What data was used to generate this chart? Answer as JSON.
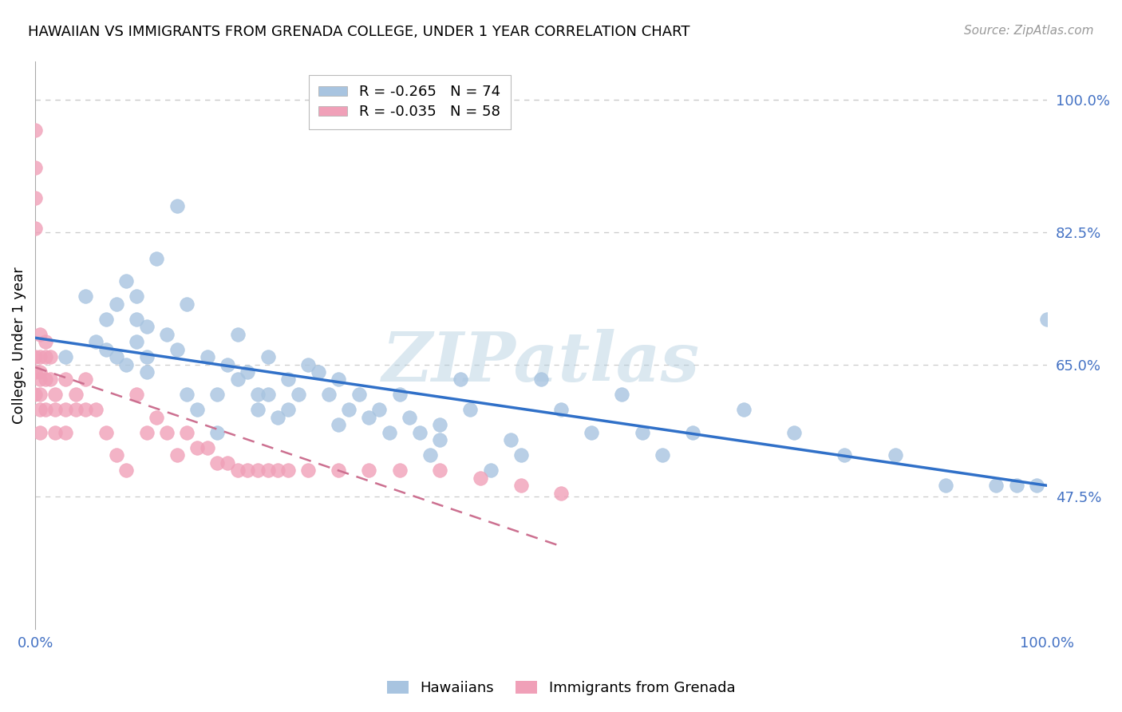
{
  "title": "HAWAIIAN VS IMMIGRANTS FROM GRENADA COLLEGE, UNDER 1 YEAR CORRELATION CHART",
  "source": "Source: ZipAtlas.com",
  "ylabel": "College, Under 1 year",
  "watermark": "ZIPatlas",
  "xlim": [
    0.0,
    1.0
  ],
  "ylim": [
    0.3,
    1.05
  ],
  "ytick_right_labels": [
    "100.0%",
    "82.5%",
    "65.0%",
    "47.5%"
  ],
  "ytick_right_values": [
    1.0,
    0.825,
    0.65,
    0.475
  ],
  "hawaiians_color": "#a8c4e0",
  "grenada_color": "#f0a0b8",
  "trend_hawaiians_color": "#3070c8",
  "trend_grenada_color": "#cc7090",
  "R_hawaiians": -0.265,
  "N_hawaiians": 74,
  "R_grenada": -0.035,
  "N_grenada": 58,
  "hawaiians_x": [
    0.03,
    0.05,
    0.06,
    0.07,
    0.07,
    0.08,
    0.08,
    0.09,
    0.09,
    0.1,
    0.1,
    0.1,
    0.11,
    0.11,
    0.11,
    0.12,
    0.13,
    0.14,
    0.14,
    0.15,
    0.15,
    0.16,
    0.17,
    0.18,
    0.18,
    0.19,
    0.2,
    0.2,
    0.21,
    0.22,
    0.22,
    0.23,
    0.23,
    0.24,
    0.25,
    0.25,
    0.26,
    0.27,
    0.28,
    0.29,
    0.3,
    0.3,
    0.31,
    0.32,
    0.33,
    0.34,
    0.35,
    0.36,
    0.37,
    0.38,
    0.39,
    0.4,
    0.4,
    0.42,
    0.43,
    0.45,
    0.47,
    0.48,
    0.5,
    0.52,
    0.55,
    0.58,
    0.6,
    0.62,
    0.65,
    0.7,
    0.75,
    0.8,
    0.85,
    0.9,
    0.95,
    0.97,
    0.99,
    1.0
  ],
  "hawaiians_y": [
    0.66,
    0.74,
    0.68,
    0.67,
    0.71,
    0.66,
    0.73,
    0.65,
    0.76,
    0.71,
    0.68,
    0.74,
    0.66,
    0.7,
    0.64,
    0.79,
    0.69,
    0.86,
    0.67,
    0.61,
    0.73,
    0.59,
    0.66,
    0.61,
    0.56,
    0.65,
    0.69,
    0.63,
    0.64,
    0.59,
    0.61,
    0.61,
    0.66,
    0.58,
    0.63,
    0.59,
    0.61,
    0.65,
    0.64,
    0.61,
    0.63,
    0.57,
    0.59,
    0.61,
    0.58,
    0.59,
    0.56,
    0.61,
    0.58,
    0.56,
    0.53,
    0.57,
    0.55,
    0.63,
    0.59,
    0.51,
    0.55,
    0.53,
    0.63,
    0.59,
    0.56,
    0.61,
    0.56,
    0.53,
    0.56,
    0.59,
    0.56,
    0.53,
    0.53,
    0.49,
    0.49,
    0.49,
    0.49,
    0.71
  ],
  "grenada_x": [
    0.0,
    0.0,
    0.0,
    0.0,
    0.0,
    0.0,
    0.0,
    0.005,
    0.005,
    0.005,
    0.005,
    0.005,
    0.005,
    0.005,
    0.01,
    0.01,
    0.01,
    0.01,
    0.015,
    0.015,
    0.02,
    0.02,
    0.02,
    0.03,
    0.03,
    0.03,
    0.04,
    0.04,
    0.05,
    0.05,
    0.06,
    0.07,
    0.08,
    0.09,
    0.1,
    0.11,
    0.12,
    0.13,
    0.14,
    0.15,
    0.16,
    0.17,
    0.18,
    0.19,
    0.2,
    0.21,
    0.22,
    0.23,
    0.24,
    0.25,
    0.27,
    0.3,
    0.33,
    0.36,
    0.4,
    0.44,
    0.48,
    0.52
  ],
  "grenada_y": [
    0.96,
    0.91,
    0.87,
    0.83,
    0.66,
    0.64,
    0.61,
    0.69,
    0.66,
    0.64,
    0.63,
    0.61,
    0.59,
    0.56,
    0.68,
    0.66,
    0.63,
    0.59,
    0.66,
    0.63,
    0.61,
    0.59,
    0.56,
    0.63,
    0.59,
    0.56,
    0.61,
    0.59,
    0.63,
    0.59,
    0.59,
    0.56,
    0.53,
    0.51,
    0.61,
    0.56,
    0.58,
    0.56,
    0.53,
    0.56,
    0.54,
    0.54,
    0.52,
    0.52,
    0.51,
    0.51,
    0.51,
    0.51,
    0.51,
    0.51,
    0.51,
    0.51,
    0.51,
    0.51,
    0.51,
    0.5,
    0.49,
    0.48
  ]
}
